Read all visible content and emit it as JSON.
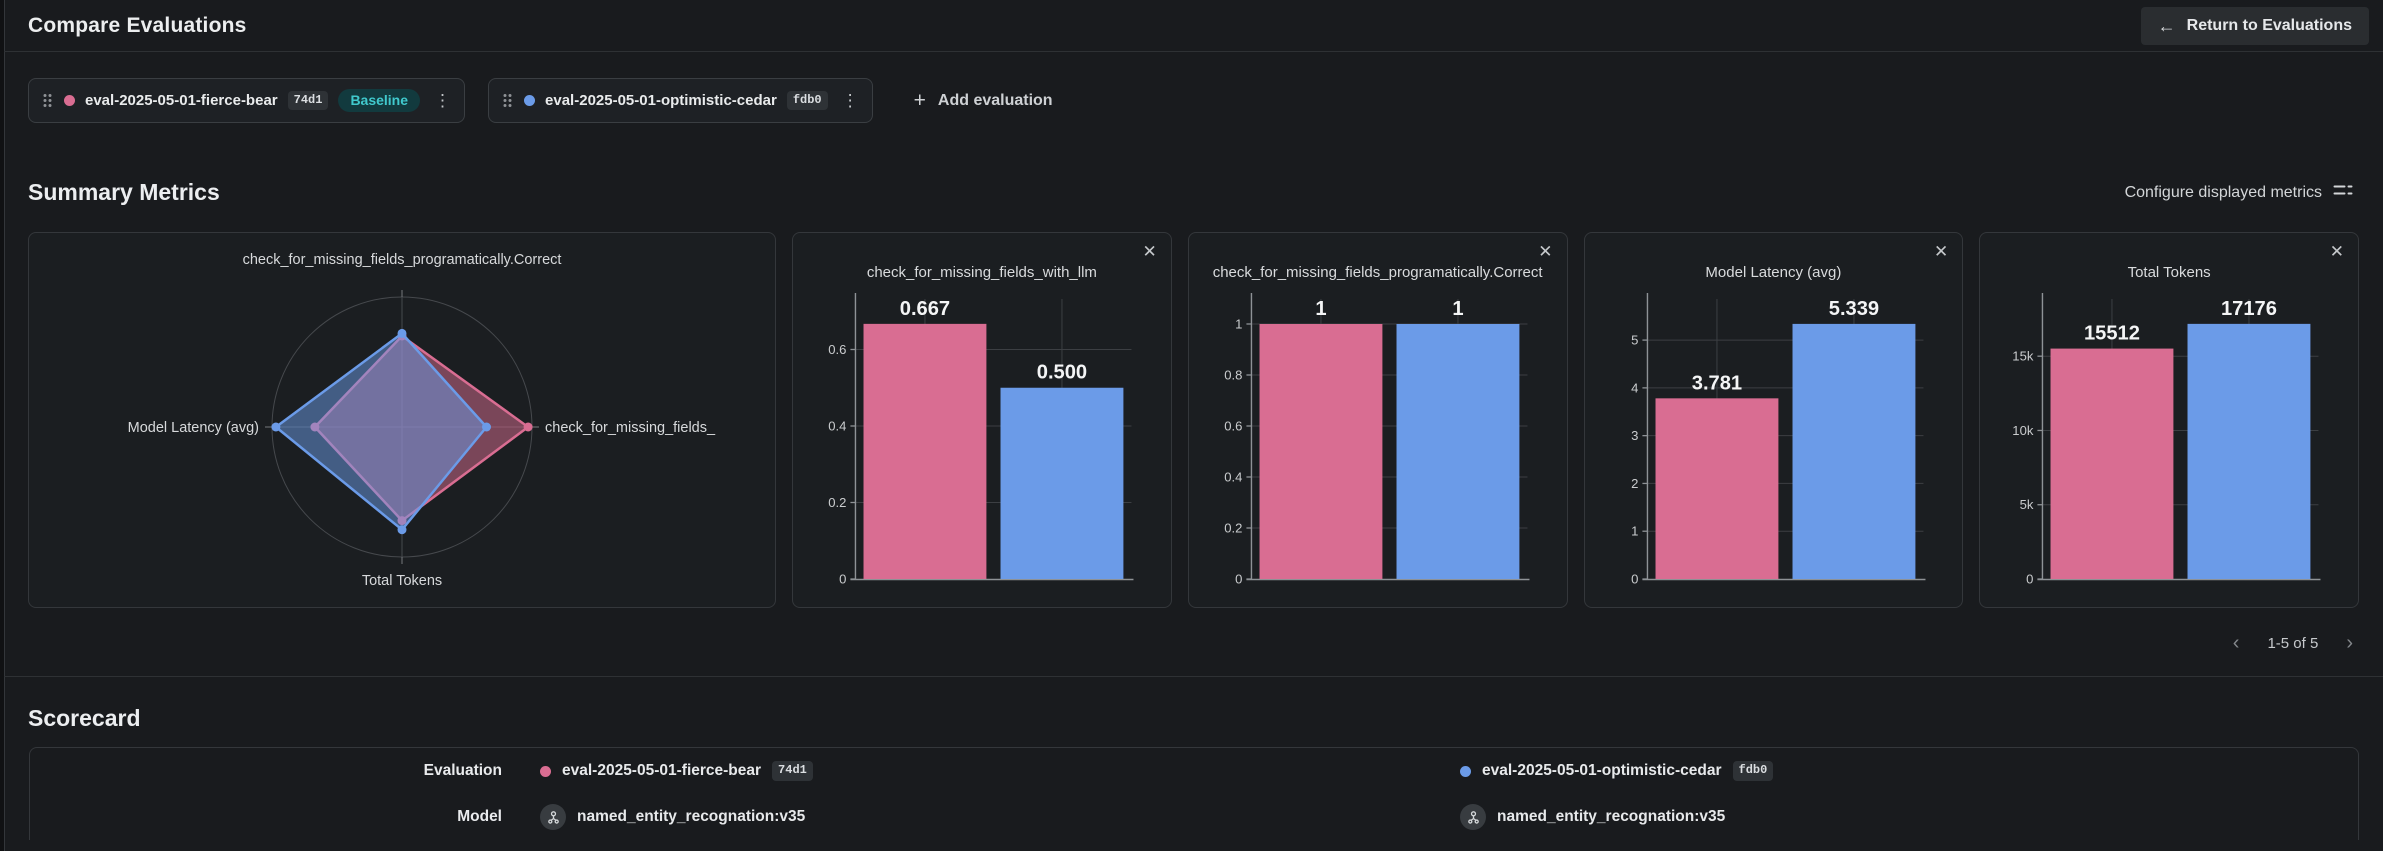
{
  "icons": {
    "close": "✕",
    "plus": "+",
    "arrow_left": "←",
    "chevron_left": "‹",
    "chevron_right": "›",
    "kebab": "⋮"
  },
  "colors": {
    "pink": "#d96d92",
    "blue": "#6b9be8",
    "teal_accent": "#40c9cd",
    "card_border": "#34373b",
    "grid": "#3c3f43",
    "axis": "#8e9296"
  },
  "header": {
    "title": "Compare Evaluations",
    "return_button_label": "Return to Evaluations"
  },
  "evaluation_bar": {
    "evaluations": [
      {
        "name": "eval-2025-05-01-fierce-bear",
        "id": "74d1",
        "color": "#d96d92",
        "baseline_label": "Baseline"
      },
      {
        "name": "eval-2025-05-01-optimistic-cedar",
        "id": "fdb0",
        "color": "#6b9be8"
      }
    ],
    "add_button_label": "Add evaluation"
  },
  "summary_metrics": {
    "title": "Summary Metrics",
    "configure_label": "Configure displayed metrics",
    "pagination_label": "1-5 of 5"
  },
  "scorecard": {
    "title": "Scorecard",
    "row_labels": {
      "evaluation": "Evaluation",
      "model": "Model"
    },
    "columns": [
      {
        "evaluation_name": "eval-2025-05-01-fierce-bear",
        "evaluation_id": "74d1",
        "model": "named_entity_recognation:v35",
        "color": "#d96d92"
      },
      {
        "evaluation_name": "eval-2025-05-01-optimistic-cedar",
        "evaluation_id": "fdb0",
        "model": "named_entity_recognation:v35",
        "color": "#6b9be8"
      }
    ]
  },
  "chart_data": [
    {
      "type": "radar",
      "axes": {
        "top": "check_for_missing_fields_programatically.Correct",
        "right": "check_for_missing_fields_",
        "bottom": "Total Tokens",
        "left": "Model Latency (avg)"
      },
      "series": [
        {
          "name": "eval-2025-05-01-fierce-bear",
          "color": "#d96d92",
          "values": {
            "top": 1,
            "right": 0.667,
            "bottom": 15512,
            "left": 3.781
          },
          "radius_fractions": [
            0.7,
            0.97,
            0.72,
            0.67
          ]
        },
        {
          "name": "eval-2025-05-01-optimistic-cedar",
          "color": "#6b9be8",
          "values": {
            "top": 1,
            "right": 0.5,
            "bottom": 17176,
            "left": 5.339
          },
          "radius_fractions": [
            0.72,
            0.65,
            0.79,
            0.97
          ]
        }
      ]
    },
    {
      "type": "bar",
      "title": "check_for_missing_fields_with_llm",
      "categories": [
        "eval-2025-05-01-fierce-bear",
        "eval-2025-05-01-optimistic-cedar"
      ],
      "values": [
        0.667,
        0.5
      ],
      "value_labels": [
        "0.667",
        "0.500"
      ],
      "colors": [
        "#d96d92",
        "#6b9be8"
      ],
      "ymax": 0.732,
      "yticks": [
        {
          "value": 0,
          "label": "0"
        },
        {
          "value": 0.2,
          "label": "0.2"
        },
        {
          "value": 0.4,
          "label": "0.4"
        },
        {
          "value": 0.6,
          "label": "0.6"
        }
      ]
    },
    {
      "type": "bar",
      "title": "check_for_missing_fields_programatically.Correct",
      "categories": [
        "eval-2025-05-01-fierce-bear",
        "eval-2025-05-01-optimistic-cedar"
      ],
      "values": [
        1,
        1
      ],
      "value_labels": [
        "1",
        "1"
      ],
      "colors": [
        "#d96d92",
        "#6b9be8"
      ],
      "ymax": 1.098,
      "yticks": [
        {
          "value": 0,
          "label": "0"
        },
        {
          "value": 0.2,
          "label": "0.2"
        },
        {
          "value": 0.4,
          "label": "0.4"
        },
        {
          "value": 0.6,
          "label": "0.6"
        },
        {
          "value": 0.8,
          "label": "0.8"
        },
        {
          "value": 1,
          "label": "1"
        }
      ]
    },
    {
      "type": "bar",
      "title": "Model Latency (avg)",
      "categories": [
        "eval-2025-05-01-fierce-bear",
        "eval-2025-05-01-optimistic-cedar"
      ],
      "values": [
        3.781,
        5.339
      ],
      "value_labels": [
        "3.781",
        "5.339"
      ],
      "colors": [
        "#d96d92",
        "#6b9be8"
      ],
      "ymax": 5.86,
      "yticks": [
        {
          "value": 0,
          "label": "0"
        },
        {
          "value": 1,
          "label": "1"
        },
        {
          "value": 2,
          "label": "2"
        },
        {
          "value": 3,
          "label": "3"
        },
        {
          "value": 4,
          "label": "4"
        },
        {
          "value": 5,
          "label": "5"
        }
      ]
    },
    {
      "type": "bar",
      "title": "Total Tokens",
      "categories": [
        "eval-2025-05-01-fierce-bear",
        "eval-2025-05-01-optimistic-cedar"
      ],
      "values": [
        15512,
        17176
      ],
      "value_labels": [
        "15512",
        "17176"
      ],
      "colors": [
        "#d96d92",
        "#6b9be8"
      ],
      "ymax": 18850,
      "yticks": [
        {
          "value": 0,
          "label": "0"
        },
        {
          "value": 5000,
          "label": "5k"
        },
        {
          "value": 10000,
          "label": "10k"
        },
        {
          "value": 15000,
          "label": "15k"
        }
      ]
    }
  ]
}
